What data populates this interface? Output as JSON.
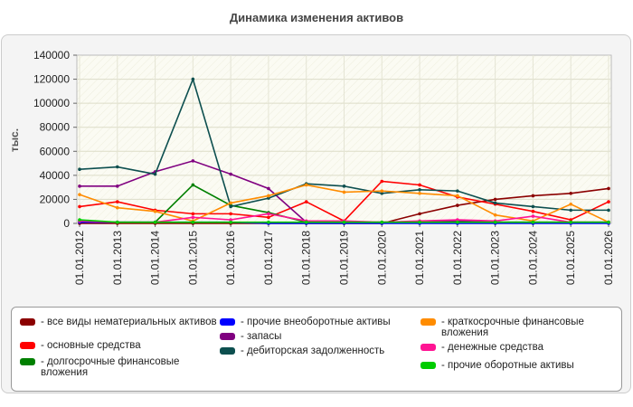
{
  "chart_data": {
    "type": "line",
    "title": "Динамика изменения активов",
    "xlabel": "",
    "ylabel": "тыс.",
    "ylim": [
      0,
      140000
    ],
    "yticks": [
      "0",
      "20000",
      "40000",
      "60000",
      "80000",
      "100000",
      "120000",
      "140000"
    ],
    "categories": [
      "01.01.2012",
      "01.01.2013",
      "01.01.2014",
      "01.01.2015",
      "01.01.2016",
      "01.01.2017",
      "01.01.2018",
      "01.01.2019",
      "01.01.2020",
      "01.01.2021",
      "01.01.2022",
      "01.01.2023",
      "01.01.2024",
      "01.01.2025",
      "01.01.2026"
    ],
    "grid": true,
    "legend_position": "bottom",
    "series": [
      {
        "name": "- все виды нематериальных активов",
        "color": "#8b0000",
        "values": [
          0,
          0,
          0,
          0,
          0,
          0,
          0,
          0,
          0,
          8000,
          15000,
          20000,
          23000,
          25000,
          29000
        ]
      },
      {
        "name": "- основные средства",
        "color": "#ff0000",
        "values": [
          14000,
          18000,
          11000,
          8000,
          8000,
          5000,
          18000,
          2000,
          35000,
          32000,
          22000,
          16000,
          10000,
          3000,
          18000
        ]
      },
      {
        "name": "- долгосрочные финансовые вложения",
        "color": "#008000",
        "values": [
          2000,
          1000,
          1000,
          32000,
          15000,
          9000,
          1000,
          1000,
          1000,
          1000,
          1000,
          1000,
          1000,
          1000,
          1000
        ]
      },
      {
        "name": "- прочие внеоборотные активы",
        "color": "#0000ff",
        "values": [
          1000,
          1000,
          1000,
          1000,
          1000,
          0,
          0,
          0,
          0,
          0,
          0,
          0,
          0,
          0,
          0
        ]
      },
      {
        "name": "- запасы",
        "color": "#800080",
        "values": [
          31000,
          31000,
          43000,
          52000,
          41000,
          29000,
          1000,
          1000,
          1000,
          1000,
          2000,
          1000,
          1000,
          1000,
          1000
        ]
      },
      {
        "name": "- дебиторская задолженность",
        "color": "#0d4f4f",
        "values": [
          45000,
          47000,
          41000,
          120000,
          14000,
          21000,
          33000,
          31000,
          25000,
          28000,
          27000,
          17000,
          14000,
          11000,
          11000
        ]
      },
      {
        "name": "- краткосрочные финансовые вложения",
        "color": "#ff8c00",
        "values": [
          24000,
          13000,
          10000,
          2000,
          17000,
          23000,
          32000,
          26000,
          27000,
          25000,
          23000,
          7000,
          2000,
          16000,
          1000
        ]
      },
      {
        "name": "- денежные средства",
        "color": "#ff1493",
        "values": [
          2000,
          1000,
          1000,
          5000,
          3000,
          8000,
          2000,
          2000,
          1000,
          2000,
          3000,
          2000,
          6000,
          1000,
          1000
        ]
      },
      {
        "name": "- прочие оборотные активы",
        "color": "#00cc00",
        "values": [
          3000,
          1000,
          1000,
          1000,
          1000,
          1000,
          1000,
          1000,
          1000,
          1000,
          1000,
          1000,
          1000,
          1000,
          1000
        ]
      }
    ]
  }
}
